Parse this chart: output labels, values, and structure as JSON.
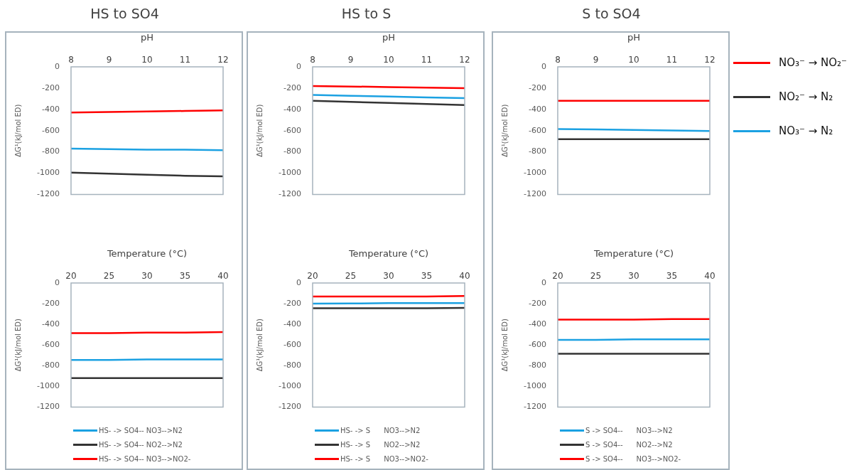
{
  "chart_data": [
    {
      "type": "line",
      "title": "HS to SO4",
      "xlabel": "pH",
      "ylabel": "ΔG¹(kJ/mol ED)",
      "x": [
        8,
        9,
        10,
        11,
        12
      ],
      "xlim": [
        8,
        12
      ],
      "xticks": [
        8,
        9,
        10,
        11,
        12
      ],
      "ylim": [
        -1200,
        0
      ],
      "yticks": [
        -1200,
        -1000,
        -800,
        -600,
        -400,
        -200,
        0
      ],
      "series": [
        {
          "color": "#ff0000",
          "values": [
            -430,
            -425,
            -420,
            -415,
            -410
          ]
        },
        {
          "color": "#1ba1e2",
          "values": [
            -770,
            -775,
            -780,
            -780,
            -785
          ]
        },
        {
          "color": "#333333",
          "values": [
            -995,
            -1005,
            -1015,
            -1025,
            -1030
          ]
        }
      ]
    },
    {
      "type": "line",
      "xlabel": "Temperature (°C)",
      "ylabel": "ΔG¹(kJ/mol ED)",
      "x": [
        20,
        25,
        30,
        35,
        40
      ],
      "xlim": [
        20,
        40
      ],
      "xticks": [
        20,
        25,
        30,
        35,
        40
      ],
      "ylim": [
        -1200,
        0
      ],
      "yticks": [
        -1200,
        -1000,
        -800,
        -600,
        -400,
        -200,
        0
      ],
      "legend": "bottom",
      "series": [
        {
          "name": "HS- -> SO4-- NO3-->N2",
          "color": "#1ba1e2",
          "values": [
            -745,
            -745,
            -740,
            -740,
            -740
          ]
        },
        {
          "name": "HS- -> SO4-- NO2-->N2",
          "color": "#333333",
          "values": [
            -920,
            -920,
            -920,
            -920,
            -920
          ]
        },
        {
          "name": "HS- -> SO4-- NO3-->NO2-",
          "color": "#ff0000",
          "values": [
            -485,
            -485,
            -480,
            -480,
            -475
          ]
        }
      ]
    },
    {
      "type": "line",
      "title": "HS to S",
      "xlabel": "pH",
      "ylabel": "ΔG¹(kJ/mol ED)",
      "x": [
        8,
        9,
        10,
        11,
        12
      ],
      "xlim": [
        8,
        12
      ],
      "xticks": [
        8,
        9,
        10,
        11,
        12
      ],
      "ylim": [
        -1200,
        0
      ],
      "yticks": [
        -1200,
        -1000,
        -800,
        -600,
        -400,
        -200,
        0
      ],
      "series": [
        {
          "color": "#ff0000",
          "values": [
            -180,
            -185,
            -190,
            -195,
            -200
          ]
        },
        {
          "color": "#1ba1e2",
          "values": [
            -265,
            -272,
            -280,
            -288,
            -295
          ]
        },
        {
          "color": "#333333",
          "values": [
            -320,
            -330,
            -340,
            -350,
            -360
          ]
        }
      ]
    },
    {
      "type": "line",
      "xlabel": "Temperature (°C)",
      "ylabel": "ΔG¹(kJ/mol ED)",
      "x": [
        20,
        25,
        30,
        35,
        40
      ],
      "xlim": [
        20,
        40
      ],
      "xticks": [
        20,
        25,
        30,
        35,
        40
      ],
      "ylim": [
        -1200,
        0
      ],
      "yticks": [
        -1200,
        -1000,
        -800,
        -600,
        -400,
        -200,
        0
      ],
      "legend": "bottom",
      "series": [
        {
          "name": "HS- -> S      NO3-->N2",
          "color": "#1ba1e2",
          "values": [
            -200,
            -198,
            -195,
            -195,
            -195
          ]
        },
        {
          "name": "HS- -> S      NO2-->N2",
          "color": "#333333",
          "values": [
            -245,
            -245,
            -245,
            -245,
            -240
          ]
        },
        {
          "name": "HS- -> S      NO3-->NO2-",
          "color": "#ff0000",
          "values": [
            -130,
            -130,
            -130,
            -130,
            -125
          ]
        }
      ]
    },
    {
      "type": "line",
      "title": "S to SO4",
      "xlabel": "pH",
      "ylabel": "ΔG¹(kJ/mol ED)",
      "x": [
        8,
        9,
        10,
        11,
        12
      ],
      "xlim": [
        8,
        12
      ],
      "xticks": [
        8,
        9,
        10,
        11,
        12
      ],
      "ylim": [
        -1200,
        0
      ],
      "yticks": [
        -1200,
        -1000,
        -800,
        -600,
        -400,
        -200,
        0
      ],
      "legend": "right",
      "series": [
        {
          "name": "NO₃⁻ → NO₂⁻",
          "color": "#ff0000",
          "values": [
            -320,
            -320,
            -320,
            -320,
            -320
          ]
        },
        {
          "name": "NO₂⁻ → N₂",
          "color": "#333333",
          "values": [
            -680,
            -680,
            -680,
            -680,
            -680
          ]
        },
        {
          "name": "NO₃⁻ → N₂",
          "color": "#1ba1e2",
          "values": [
            -585,
            -588,
            -593,
            -598,
            -603
          ]
        }
      ]
    },
    {
      "type": "line",
      "xlabel": "Temperature (°C)",
      "ylabel": "ΔG¹(kJ/mol ED)",
      "x": [
        20,
        25,
        30,
        35,
        40
      ],
      "xlim": [
        20,
        40
      ],
      "xticks": [
        20,
        25,
        30,
        35,
        40
      ],
      "ylim": [
        -1200,
        0
      ],
      "yticks": [
        -1200,
        -1000,
        -800,
        -600,
        -400,
        -200,
        0
      ],
      "legend": "bottom",
      "series": [
        {
          "name": "S -> SO4--      NO3-->N2",
          "color": "#1ba1e2",
          "values": [
            -550,
            -550,
            -545,
            -545,
            -545
          ]
        },
        {
          "name": "S -> SO4--      NO2-->N2",
          "color": "#333333",
          "values": [
            -685,
            -685,
            -685,
            -685,
            -685
          ]
        },
        {
          "name": "S -> SO4--      NO3-->NO2-",
          "color": "#ff0000",
          "values": [
            -355,
            -355,
            -355,
            -350,
            -350
          ]
        }
      ]
    }
  ]
}
